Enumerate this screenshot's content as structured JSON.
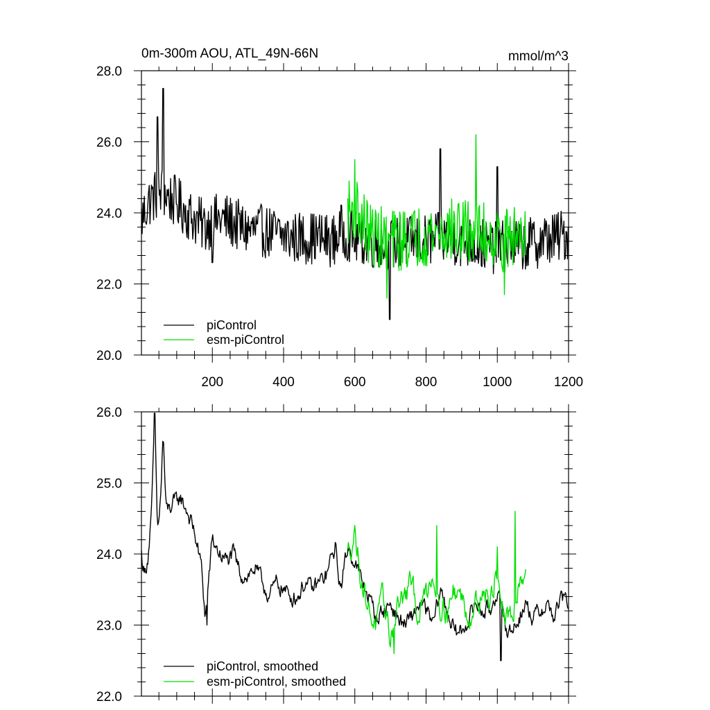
{
  "figure": {
    "title": "0m-300m AOU, ATL_49N-66N",
    "units": "mmol/m^3"
  },
  "colors": {
    "piControl": "#000000",
    "esm": "#00e000"
  },
  "chart_data": [
    {
      "type": "line",
      "panel": "top",
      "title": "0m-300m AOU, ATL_49N-66N",
      "units_label": "mmol/m^3",
      "xlim": [
        1,
        1200
      ],
      "ylim": [
        20.0,
        28.0
      ],
      "xticks": [
        200,
        400,
        600,
        800,
        1000,
        1200
      ],
      "xtick_labels": [
        "200",
        "400",
        "600",
        "800",
        "1000",
        "1200"
      ],
      "yticks": [
        20.0,
        22.0,
        24.0,
        26.0,
        28.0
      ],
      "ytick_labels": [
        "20.0",
        "22.0",
        "24.0",
        "26.0",
        "28.0"
      ],
      "legend_position": "bottom-left",
      "series": [
        {
          "name": "piControl",
          "key": "piControl",
          "x_start": 1,
          "x_end": 1200,
          "anchors": [
            [
              1,
              23.8
            ],
            [
              20,
              24.3
            ],
            [
              40,
              24.5
            ],
            [
              60,
              24.6
            ],
            [
              80,
              24.4
            ],
            [
              100,
              24.3
            ],
            [
              140,
              23.9
            ],
            [
              180,
              23.6
            ],
            [
              200,
              23.8
            ],
            [
              240,
              23.8
            ],
            [
              280,
              23.6
            ],
            [
              300,
              23.5
            ],
            [
              340,
              23.5
            ],
            [
              380,
              23.4
            ],
            [
              420,
              23.3
            ],
            [
              460,
              23.3
            ],
            [
              500,
              23.3
            ],
            [
              540,
              23.2
            ],
            [
              560,
              23.5
            ],
            [
              600,
              23.3
            ],
            [
              640,
              23.2
            ],
            [
              700,
              23.1
            ],
            [
              760,
              23.2
            ],
            [
              800,
              23.2
            ],
            [
              860,
              23.3
            ],
            [
              900,
              23.2
            ],
            [
              960,
              23.1
            ],
            [
              1000,
              23.0
            ],
            [
              1040,
              23.1
            ],
            [
              1080,
              23.1
            ],
            [
              1120,
              23.2
            ],
            [
              1160,
              23.3
            ],
            [
              1200,
              23.4
            ]
          ],
          "noise_amp": 0.75,
          "extremes": [
            [
              62,
              27.5
            ],
            [
              46,
              26.7
            ],
            [
              698,
              21.0
            ],
            [
              840,
              25.8
            ],
            [
              1000,
              25.3
            ],
            [
              200,
              22.6
            ]
          ]
        },
        {
          "name": "esm-piControl",
          "key": "esm",
          "x_start": 580,
          "x_end": 1080,
          "anchors": [
            [
              580,
              24.0
            ],
            [
              600,
              24.2
            ],
            [
              640,
              23.4
            ],
            [
              700,
              23.2
            ],
            [
              760,
              23.3
            ],
            [
              800,
              23.4
            ],
            [
              860,
              23.5
            ],
            [
              900,
              23.5
            ],
            [
              940,
              23.4
            ],
            [
              980,
              23.4
            ],
            [
              1020,
              23.2
            ],
            [
              1060,
              23.4
            ],
            [
              1080,
              23.7
            ]
          ],
          "noise_amp": 0.9,
          "extremes": [
            [
              940,
              26.2
            ],
            [
              690,
              21.6
            ],
            [
              1020,
              21.7
            ],
            [
              600,
              25.5
            ]
          ]
        }
      ]
    },
    {
      "type": "line",
      "panel": "bottom",
      "xlim": [
        1,
        1200
      ],
      "ylim": [
        22.0,
        26.0
      ],
      "xticks": [
        200,
        400,
        600,
        800,
        1000,
        1200
      ],
      "yticks": [
        22.0,
        23.0,
        24.0,
        25.0,
        26.0
      ],
      "ytick_labels": [
        "22.0",
        "23.0",
        "24.0",
        "25.0",
        "26.0"
      ],
      "legend_position": "bottom-left",
      "series": [
        {
          "name": "piControl, smoothed",
          "key": "piControl",
          "x_start": 1,
          "x_end": 1200,
          "anchors": [
            [
              1,
              24.0
            ],
            [
              10,
              23.7
            ],
            [
              20,
              24.0
            ],
            [
              30,
              24.6
            ],
            [
              38,
              26.0
            ],
            [
              46,
              24.3
            ],
            [
              55,
              24.8
            ],
            [
              62,
              25.7
            ],
            [
              70,
              24.6
            ],
            [
              90,
              24.7
            ],
            [
              110,
              24.8
            ],
            [
              130,
              24.6
            ],
            [
              150,
              24.3
            ],
            [
              170,
              23.8
            ],
            [
              180,
              23.1
            ],
            [
              200,
              24.2
            ],
            [
              220,
              24.0
            ],
            [
              240,
              23.9
            ],
            [
              260,
              24.0
            ],
            [
              280,
              23.7
            ],
            [
              300,
              23.7
            ],
            [
              320,
              23.8
            ],
            [
              340,
              23.6
            ],
            [
              360,
              23.4
            ],
            [
              380,
              23.6
            ],
            [
              400,
              23.5
            ],
            [
              420,
              23.4
            ],
            [
              440,
              23.4
            ],
            [
              460,
              23.6
            ],
            [
              480,
              23.5
            ],
            [
              500,
              23.6
            ],
            [
              520,
              23.7
            ],
            [
              545,
              24.1
            ],
            [
              560,
              23.5
            ],
            [
              580,
              24.1
            ],
            [
              600,
              23.9
            ],
            [
              620,
              23.6
            ],
            [
              640,
              23.4
            ],
            [
              660,
              23.1
            ],
            [
              680,
              23.2
            ],
            [
              700,
              23.3
            ],
            [
              720,
              23.1
            ],
            [
              740,
              23.0
            ],
            [
              760,
              23.1
            ],
            [
              780,
              23.3
            ],
            [
              800,
              23.2
            ],
            [
              820,
              23.0
            ],
            [
              840,
              23.5
            ],
            [
              860,
              23.2
            ],
            [
              880,
              22.9
            ],
            [
              900,
              22.9
            ],
            [
              940,
              23.3
            ],
            [
              960,
              23.2
            ],
            [
              980,
              23.2
            ],
            [
              1000,
              23.5
            ],
            [
              1020,
              23.0
            ],
            [
              1040,
              22.9
            ],
            [
              1060,
              23.1
            ],
            [
              1080,
              23.3
            ],
            [
              1100,
              23.1
            ],
            [
              1120,
              23.2
            ],
            [
              1140,
              23.3
            ],
            [
              1160,
              23.1
            ],
            [
              1180,
              23.4
            ],
            [
              1200,
              23.3
            ]
          ],
          "noise_amp": 0.22,
          "extremes": [
            [
              38,
              26.0
            ],
            [
              185,
              23.0
            ],
            [
              1010,
              22.5
            ]
          ]
        },
        {
          "name": "esm-piControl, smoothed",
          "key": "esm",
          "x_start": 580,
          "x_end": 1080,
          "anchors": [
            [
              580,
              24.0
            ],
            [
              600,
              24.3
            ],
            [
              620,
              23.6
            ],
            [
              640,
              23.2
            ],
            [
              660,
              23.0
            ],
            [
              680,
              23.4
            ],
            [
              700,
              22.8
            ],
            [
              720,
              23.3
            ],
            [
              740,
              23.4
            ],
            [
              760,
              23.6
            ],
            [
              780,
              23.1
            ],
            [
              800,
              23.5
            ],
            [
              820,
              23.7
            ],
            [
              840,
              23.3
            ],
            [
              860,
              23.2
            ],
            [
              880,
              23.5
            ],
            [
              900,
              23.4
            ],
            [
              920,
              23.1
            ],
            [
              940,
              23.3
            ],
            [
              960,
              23.5
            ],
            [
              980,
              23.3
            ],
            [
              1000,
              23.8
            ],
            [
              1020,
              23.0
            ],
            [
              1040,
              23.1
            ],
            [
              1060,
              23.6
            ],
            [
              1080,
              23.8
            ]
          ],
          "noise_amp": 0.32,
          "extremes": [
            [
              1050,
              24.6
            ],
            [
              830,
              24.4
            ],
            [
              710,
              22.6
            ],
            [
              1000,
              24.1
            ]
          ]
        }
      ]
    }
  ]
}
